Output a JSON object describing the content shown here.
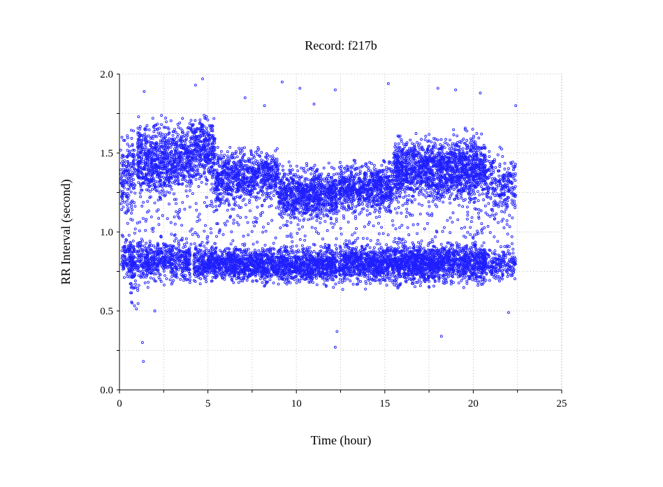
{
  "chart_data": {
    "type": "scatter",
    "title": "Record:  f217b",
    "xlabel": "Time (hour)",
    "ylabel": "RR Interval (second)",
    "xlim": [
      0,
      25
    ],
    "ylim": [
      0.0,
      2.0
    ],
    "x_ticks": [
      "0",
      "5",
      "10",
      "15",
      "20",
      "25"
    ],
    "y_ticks": [
      "0.0",
      "0.5",
      "1.0",
      "1.5",
      "2.0"
    ],
    "grid": true,
    "marker": "open-circle",
    "series": [
      {
        "color": "#1f1fff",
        "clusters": [
          {
            "x_range": [
              0.05,
              0.9
            ],
            "y_center": 1.38,
            "y_spread": 0.12,
            "density": 0.08
          },
          {
            "x_range": [
              0.1,
              0.9
            ],
            "y_center": 0.83,
            "y_spread": 0.06,
            "density": 0.07
          },
          {
            "x_range": [
              0.6,
              1.1
            ],
            "y_center": 0.7,
            "y_spread": 0.12,
            "density": 0.05
          },
          {
            "x_range": [
              1.0,
              4.0
            ],
            "y_center": 1.45,
            "y_spread": 0.1,
            "density": 0.12
          },
          {
            "x_range": [
              1.0,
              4.0
            ],
            "y_center": 0.82,
            "y_spread": 0.06,
            "density": 0.08
          },
          {
            "x_range": [
              4.0,
              5.4
            ],
            "y_center": 1.52,
            "y_spread": 0.1,
            "density": 0.12
          },
          {
            "x_range": [
              4.2,
              7.0
            ],
            "y_center": 0.8,
            "y_spread": 0.05,
            "density": 0.1
          },
          {
            "x_range": [
              5.4,
              7.0
            ],
            "y_center": 1.35,
            "y_spread": 0.09,
            "density": 0.1
          },
          {
            "x_range": [
              7.0,
              9.0
            ],
            "y_center": 1.35,
            "y_spread": 0.07,
            "density": 0.09
          },
          {
            "x_range": [
              7.0,
              12.3
            ],
            "y_center": 0.79,
            "y_spread": 0.05,
            "density": 0.1
          },
          {
            "x_range": [
              9.0,
              12.3
            ],
            "y_center": 1.23,
            "y_spread": 0.07,
            "density": 0.11
          },
          {
            "x_range": [
              12.4,
              15.5
            ],
            "y_center": 1.28,
            "y_spread": 0.07,
            "density": 0.1
          },
          {
            "x_range": [
              12.4,
              20.7
            ],
            "y_center": 0.8,
            "y_spread": 0.055,
            "density": 0.11
          },
          {
            "x_range": [
              15.5,
              20.7
            ],
            "y_center": 1.4,
            "y_spread": 0.09,
            "density": 0.13
          },
          {
            "x_range": [
              20.7,
              22.4
            ],
            "y_center": 1.3,
            "y_spread": 0.1,
            "density": 0.06
          },
          {
            "x_range": [
              20.7,
              22.4
            ],
            "y_center": 0.79,
            "y_spread": 0.05,
            "density": 0.05
          }
        ],
        "outliers": [
          {
            "x": 1.3,
            "y": 0.3
          },
          {
            "x": 1.35,
            "y": 0.18
          },
          {
            "x": 1.4,
            "y": 1.89
          },
          {
            "x": 4.3,
            "y": 1.93
          },
          {
            "x": 4.7,
            "y": 1.97
          },
          {
            "x": 9.2,
            "y": 1.95
          },
          {
            "x": 10.2,
            "y": 1.91
          },
          {
            "x": 12.2,
            "y": 1.9
          },
          {
            "x": 12.2,
            "y": 0.27
          },
          {
            "x": 12.3,
            "y": 0.37
          },
          {
            "x": 15.2,
            "y": 1.94
          },
          {
            "x": 18.2,
            "y": 0.34
          },
          {
            "x": 8.2,
            "y": 1.8
          },
          {
            "x": 7.1,
            "y": 1.85
          },
          {
            "x": 18.0,
            "y": 1.91
          },
          {
            "x": 20.4,
            "y": 1.88
          },
          {
            "x": 22.4,
            "y": 1.8
          },
          {
            "x": 19.0,
            "y": 1.9
          },
          {
            "x": 2.0,
            "y": 0.5
          },
          {
            "x": 22.0,
            "y": 0.49
          },
          {
            "x": 11.0,
            "y": 1.81
          }
        ]
      }
    ]
  }
}
